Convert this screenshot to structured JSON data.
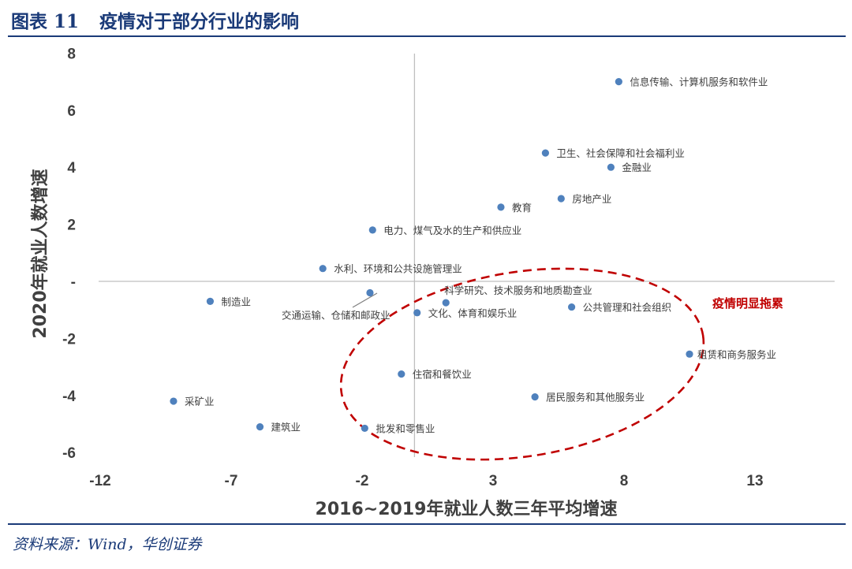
{
  "figure": {
    "label": "图表 11",
    "title": "疫情对于部分行业的影响"
  },
  "source": "资料来源：Wind，华创证券",
  "chart_data": {
    "type": "scatter",
    "xlabel": "2016~2019年就业人数三年平均增速",
    "ylabel": "2020年就业人数增速",
    "xlim": [
      -12,
      16
    ],
    "ylim": [
      -6.5,
      8.2
    ],
    "x_ticks": [
      "-12",
      "-7",
      "-2",
      "3",
      "8",
      "13"
    ],
    "y_ticks": [
      "8",
      "6",
      "4",
      "2",
      "-",
      "-2",
      "-4",
      "-6"
    ],
    "grid": false,
    "marker_color": "#4f81bd",
    "points": [
      {
        "label": "信息传输、计算机服务和软件业",
        "x": 7.8,
        "y": 7.0
      },
      {
        "label": "卫生、社会保障和社会福利业",
        "x": 5.0,
        "y": 4.5
      },
      {
        "label": "金融业",
        "x": 7.5,
        "y": 4.0
      },
      {
        "label": "房地产业",
        "x": 5.6,
        "y": 2.9
      },
      {
        "label": "教育",
        "x": 3.3,
        "y": 2.6
      },
      {
        "label": "电力、煤气及水的生产和供应业",
        "x": -1.6,
        "y": 1.8
      },
      {
        "label": "水利、环境和公共设施管理业",
        "x": -3.5,
        "y": 0.45
      },
      {
        "label": "制造业",
        "x": -7.8,
        "y": -0.7
      },
      {
        "label": "交通运输、仓储和邮政业",
        "x": -1.7,
        "y": -0.4
      },
      {
        "label": "科学研究、技术服务和地质勘查业",
        "x": 1.2,
        "y": -0.75
      },
      {
        "label": "文化、体育和娱乐业",
        "x": 0.1,
        "y": -1.1
      },
      {
        "label": "公共管理和社会组织",
        "x": 6.0,
        "y": -0.9
      },
      {
        "label": "租赁和商务服务业",
        "x": 10.5,
        "y": -2.55
      },
      {
        "label": "住宿和餐饮业",
        "x": -0.5,
        "y": -3.25
      },
      {
        "label": "居民服务和其他服务业",
        "x": 4.6,
        "y": -4.05
      },
      {
        "label": "采矿业",
        "x": -9.2,
        "y": -4.2
      },
      {
        "label": "建筑业",
        "x": -5.9,
        "y": -5.1
      },
      {
        "label": "批发和零售业",
        "x": -1.9,
        "y": -5.15
      }
    ],
    "annotation": {
      "text": "疫情明显拖累",
      "color": "#c00000"
    }
  }
}
